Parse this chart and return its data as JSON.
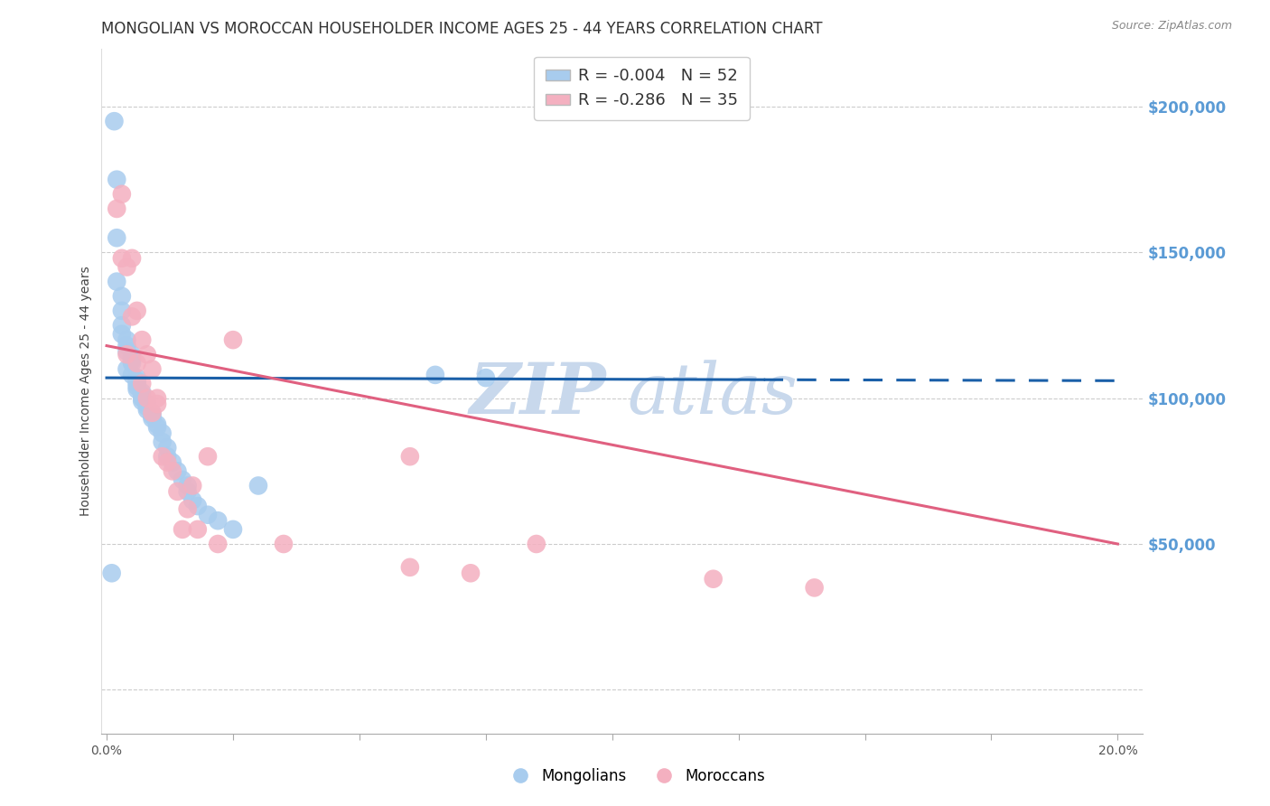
{
  "title": "MONGOLIAN VS MOROCCAN HOUSEHOLDER INCOME AGES 25 - 44 YEARS CORRELATION CHART",
  "source": "Source: ZipAtlas.com",
  "ylabel": "Householder Income Ages 25 - 44 years",
  "bg_color": "#ffffff",
  "grid_color": "#cccccc",
  "mongolian_color": "#a8ccee",
  "moroccan_color": "#f4b0c0",
  "mongolian_line_color": "#1a5fa8",
  "moroccan_line_color": "#e06080",
  "right_label_color": "#5b9bd5",
  "R_mongolian": -0.004,
  "N_mongolian": 52,
  "R_moroccan": -0.286,
  "N_moroccan": 35,
  "mongolian_x": [
    0.001,
    0.0015,
    0.002,
    0.002,
    0.002,
    0.003,
    0.003,
    0.003,
    0.003,
    0.004,
    0.004,
    0.004,
    0.004,
    0.005,
    0.005,
    0.005,
    0.005,
    0.005,
    0.006,
    0.006,
    0.006,
    0.006,
    0.006,
    0.007,
    0.007,
    0.007,
    0.007,
    0.008,
    0.008,
    0.008,
    0.009,
    0.009,
    0.009,
    0.01,
    0.01,
    0.011,
    0.011,
    0.012,
    0.012,
    0.013,
    0.014,
    0.015,
    0.016,
    0.016,
    0.017,
    0.018,
    0.02,
    0.022,
    0.025,
    0.03,
    0.065,
    0.075
  ],
  "mongolian_y": [
    40000,
    195000,
    175000,
    155000,
    140000,
    135000,
    130000,
    125000,
    122000,
    120000,
    118000,
    116000,
    110000,
    115000,
    114000,
    113000,
    112000,
    108000,
    107000,
    106000,
    105000,
    104000,
    103000,
    102000,
    101000,
    100000,
    99000,
    98000,
    97000,
    96000,
    95000,
    94000,
    93000,
    91000,
    90000,
    88000,
    85000,
    83000,
    80000,
    78000,
    75000,
    72000,
    70000,
    68000,
    65000,
    63000,
    60000,
    58000,
    55000,
    70000,
    108000,
    107000
  ],
  "moroccan_x": [
    0.002,
    0.003,
    0.003,
    0.004,
    0.004,
    0.005,
    0.005,
    0.006,
    0.006,
    0.007,
    0.007,
    0.008,
    0.008,
    0.009,
    0.009,
    0.01,
    0.01,
    0.011,
    0.012,
    0.013,
    0.014,
    0.015,
    0.016,
    0.017,
    0.018,
    0.02,
    0.022,
    0.025,
    0.035,
    0.06,
    0.072,
    0.085,
    0.12,
    0.14,
    0.06
  ],
  "moroccan_y": [
    165000,
    170000,
    148000,
    145000,
    115000,
    148000,
    128000,
    130000,
    112000,
    120000,
    105000,
    115000,
    100000,
    110000,
    95000,
    100000,
    98000,
    80000,
    78000,
    75000,
    68000,
    55000,
    62000,
    70000,
    55000,
    80000,
    50000,
    120000,
    50000,
    42000,
    40000,
    50000,
    38000,
    35000,
    80000
  ],
  "xlim": [
    -0.001,
    0.205
  ],
  "ylim": [
    -15000,
    220000
  ],
  "yticks": [
    0,
    50000,
    100000,
    150000,
    200000
  ],
  "ytick_right_labels": [
    "",
    "$50,000",
    "$100,000",
    "$150,000",
    "$200,000"
  ],
  "mongo_line_y_at_0": 107000,
  "mongo_line_y_at_02": 106000,
  "moroc_line_y_at_0": 118000,
  "moroc_line_y_at_02": 50000,
  "title_fontsize": 12,
  "axis_label_fontsize": 10,
  "tick_fontsize": 10,
  "legend_fontsize": 12
}
